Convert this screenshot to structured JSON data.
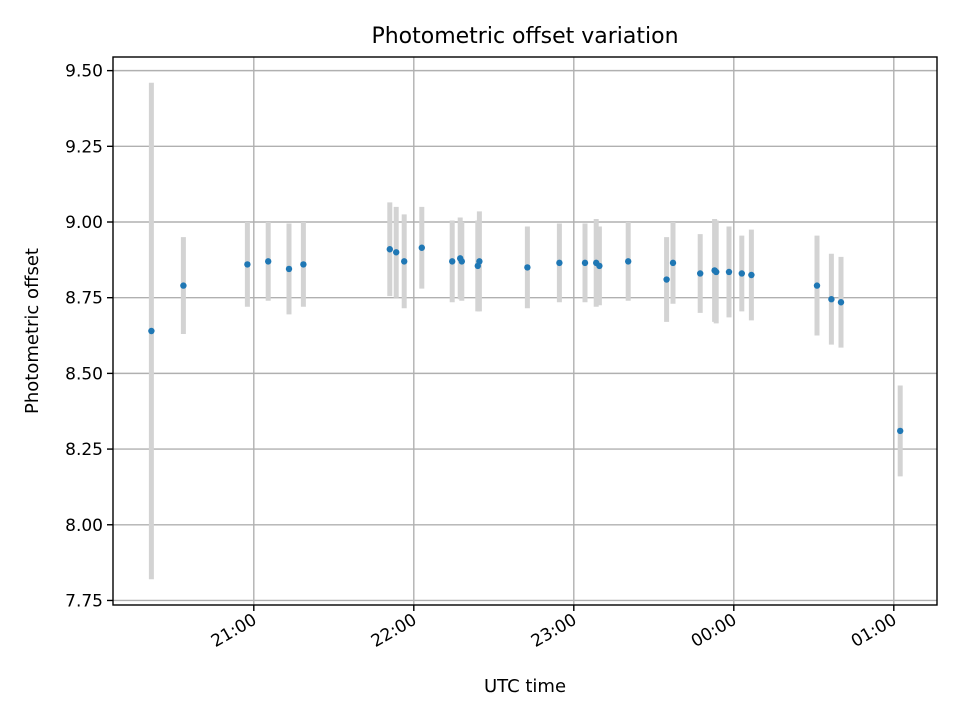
{
  "chart_data": {
    "type": "scatter",
    "title": "Photometric offset variation",
    "xlabel": "UTC time",
    "ylabel": "Photometric offset",
    "x_unit": "hours_since_midnight_utc",
    "xlim": [
      20.12,
      25.27
    ],
    "ylim": [
      7.735,
      9.545
    ],
    "x_ticks": [
      {
        "value": 21,
        "label": "21:00"
      },
      {
        "value": 22,
        "label": "22:00"
      },
      {
        "value": 23,
        "label": "23:00"
      },
      {
        "value": 24,
        "label": "00:00"
      },
      {
        "value": 25,
        "label": "01:00"
      }
    ],
    "y_ticks": [
      {
        "value": 7.75,
        "label": "7.75"
      },
      {
        "value": 8.0,
        "label": "8.00"
      },
      {
        "value": 8.25,
        "label": "8.25"
      },
      {
        "value": 8.5,
        "label": "8.50"
      },
      {
        "value": 8.75,
        "label": "8.75"
      },
      {
        "value": 9.0,
        "label": "9.00"
      },
      {
        "value": 9.25,
        "label": "9.25"
      },
      {
        "value": 9.5,
        "label": "9.50"
      }
    ],
    "grid": true,
    "marker_color": "#1f77b4",
    "errorbar_color": "#d3d3d3",
    "points": [
      {
        "x": 20.36,
        "y": 8.64,
        "yerr": 0.82
      },
      {
        "x": 20.56,
        "y": 8.79,
        "yerr": 0.16
      },
      {
        "x": 20.96,
        "y": 8.86,
        "yerr": 0.14
      },
      {
        "x": 21.09,
        "y": 8.87,
        "yerr": 0.13
      },
      {
        "x": 21.22,
        "y": 8.845,
        "yerr": 0.15
      },
      {
        "x": 21.31,
        "y": 8.86,
        "yerr": 0.14
      },
      {
        "x": 21.85,
        "y": 8.91,
        "yerr": 0.155
      },
      {
        "x": 21.89,
        "y": 8.9,
        "yerr": 0.15
      },
      {
        "x": 21.94,
        "y": 8.87,
        "yerr": 0.155
      },
      {
        "x": 22.05,
        "y": 8.915,
        "yerr": 0.135
      },
      {
        "x": 22.24,
        "y": 8.87,
        "yerr": 0.135
      },
      {
        "x": 22.29,
        "y": 8.88,
        "yerr": 0.135
      },
      {
        "x": 22.3,
        "y": 8.87,
        "yerr": 0.13
      },
      {
        "x": 22.4,
        "y": 8.855,
        "yerr": 0.15
      },
      {
        "x": 22.41,
        "y": 8.87,
        "yerr": 0.165
      },
      {
        "x": 22.71,
        "y": 8.85,
        "yerr": 0.135
      },
      {
        "x": 22.91,
        "y": 8.865,
        "yerr": 0.13
      },
      {
        "x": 23.07,
        "y": 8.865,
        "yerr": 0.13
      },
      {
        "x": 23.14,
        "y": 8.865,
        "yerr": 0.145
      },
      {
        "x": 23.16,
        "y": 8.855,
        "yerr": 0.13
      },
      {
        "x": 23.34,
        "y": 8.87,
        "yerr": 0.13
      },
      {
        "x": 23.58,
        "y": 8.81,
        "yerr": 0.14
      },
      {
        "x": 23.62,
        "y": 8.865,
        "yerr": 0.135
      },
      {
        "x": 23.79,
        "y": 8.83,
        "yerr": 0.13
      },
      {
        "x": 23.88,
        "y": 8.84,
        "yerr": 0.17
      },
      {
        "x": 23.89,
        "y": 8.835,
        "yerr": 0.17
      },
      {
        "x": 23.97,
        "y": 8.835,
        "yerr": 0.15
      },
      {
        "x": 24.05,
        "y": 8.83,
        "yerr": 0.125
      },
      {
        "x": 24.11,
        "y": 8.825,
        "yerr": 0.15
      },
      {
        "x": 24.52,
        "y": 8.79,
        "yerr": 0.165
      },
      {
        "x": 24.61,
        "y": 8.745,
        "yerr": 0.15
      },
      {
        "x": 24.67,
        "y": 8.735,
        "yerr": 0.15
      },
      {
        "x": 25.04,
        "y": 8.31,
        "yerr": 0.15
      }
    ]
  }
}
